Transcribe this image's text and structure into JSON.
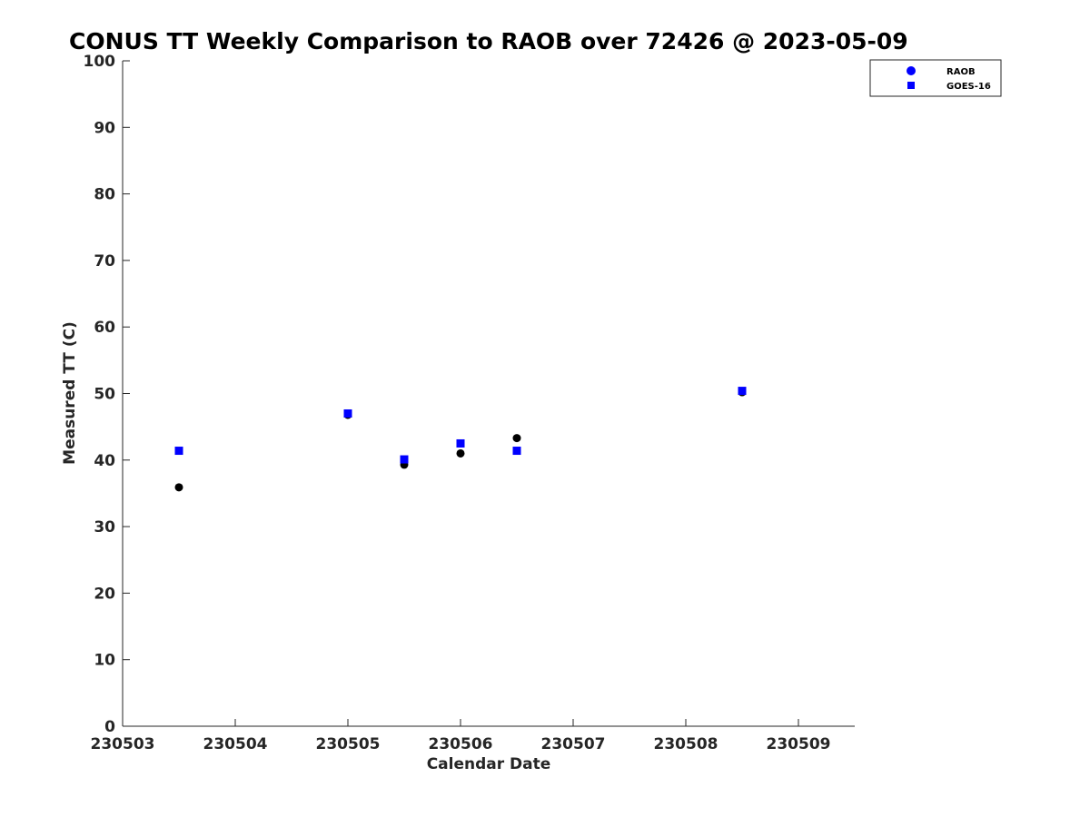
{
  "chart_data": {
    "type": "scatter",
    "title": "CONUS TT Weekly Comparison to RAOB over 72426 @ 2023-05-09",
    "xlabel": "Calendar Date",
    "ylabel": "Measured TT (C)",
    "xlim": [
      230503,
      230509.5
    ],
    "ylim": [
      0,
      100
    ],
    "x_ticks": [
      230503,
      230504,
      230505,
      230506,
      230507,
      230508,
      230509
    ],
    "x_tick_labels": [
      "230503",
      "230504",
      "230505",
      "230506",
      "230507",
      "230508",
      "230509"
    ],
    "y_ticks": [
      0,
      10,
      20,
      30,
      40,
      50,
      60,
      70,
      80,
      90,
      100
    ],
    "y_tick_labels": [
      "0",
      "10",
      "20",
      "30",
      "40",
      "50",
      "60",
      "70",
      "80",
      "90",
      "100"
    ],
    "grid": false,
    "legend_position": "top-right",
    "legend": [
      {
        "name": "RAOB",
        "marker": "circle",
        "color": "#0000ff"
      },
      {
        "name": "GOES-16",
        "marker": "square",
        "color": "#0000ff"
      }
    ],
    "series": [
      {
        "name": "RAOB",
        "marker": "circle",
        "color": "#000000",
        "x": [
          230503.5,
          230505.0,
          230505.5,
          230506.0,
          230506.5,
          230508.5
        ],
        "y": [
          35.9,
          46.8,
          39.3,
          41.0,
          43.3,
          50.2
        ]
      },
      {
        "name": "GOES-16",
        "marker": "square",
        "color": "#0000ff",
        "x": [
          230503.5,
          230505.0,
          230505.5,
          230506.0,
          230506.5,
          230508.5
        ],
        "y": [
          41.4,
          47.0,
          40.1,
          42.5,
          41.4,
          50.4
        ]
      }
    ]
  }
}
